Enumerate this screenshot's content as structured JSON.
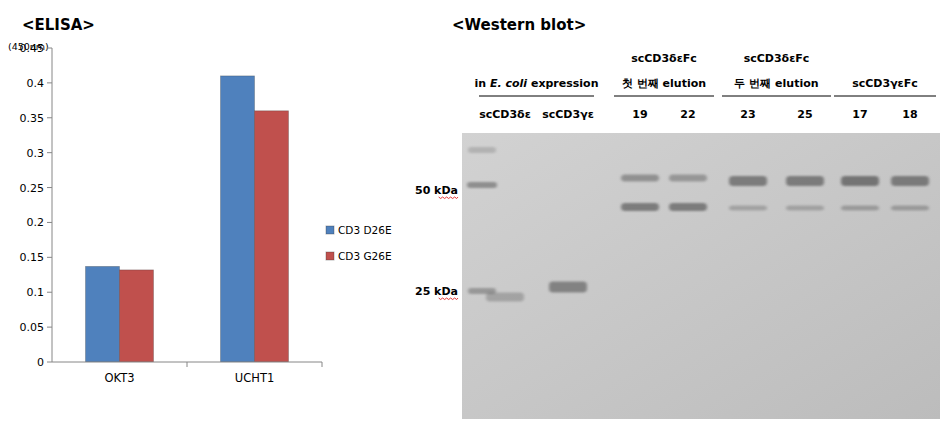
{
  "chart_data": {
    "type": "bar",
    "title": "<ELISA>",
    "y_label": "(450nm)",
    "categories": [
      "OKT3",
      "UCHT1"
    ],
    "series": [
      {
        "name": "CD3 D26E",
        "color": "#4f81bd",
        "values": [
          0.137,
          0.41
        ]
      },
      {
        "name": "CD3 G26E",
        "color": "#c0504d",
        "values": [
          0.132,
          0.36
        ]
      }
    ],
    "ylim": [
      0,
      0.45
    ],
    "yticks": [
      0,
      0.05,
      0.1,
      0.15,
      0.2,
      0.25,
      0.3,
      0.35,
      0.4,
      0.45
    ],
    "grid": false,
    "legend": "right"
  },
  "western_blot": {
    "title": "<Western blot>",
    "groups": [
      {
        "lines": [
          "in E. coli expression"
        ],
        "italic": "E. coli",
        "lanes": [
          "scCD3δε",
          "scCD3γε"
        ]
      },
      {
        "lines": [
          "scCD3δεFc",
          "첫 번째 elution"
        ],
        "lanes": [
          "19",
          "22"
        ]
      },
      {
        "lines": [
          "scCD3δεFc",
          "두 번째 elution"
        ],
        "lanes": [
          "23",
          "25"
        ]
      },
      {
        "lines": [
          "scCD3γεFc"
        ],
        "lanes": [
          "17",
          "18"
        ]
      }
    ],
    "markers": [
      {
        "label": "50 kDa"
      },
      {
        "label": "25 kDa"
      }
    ]
  }
}
